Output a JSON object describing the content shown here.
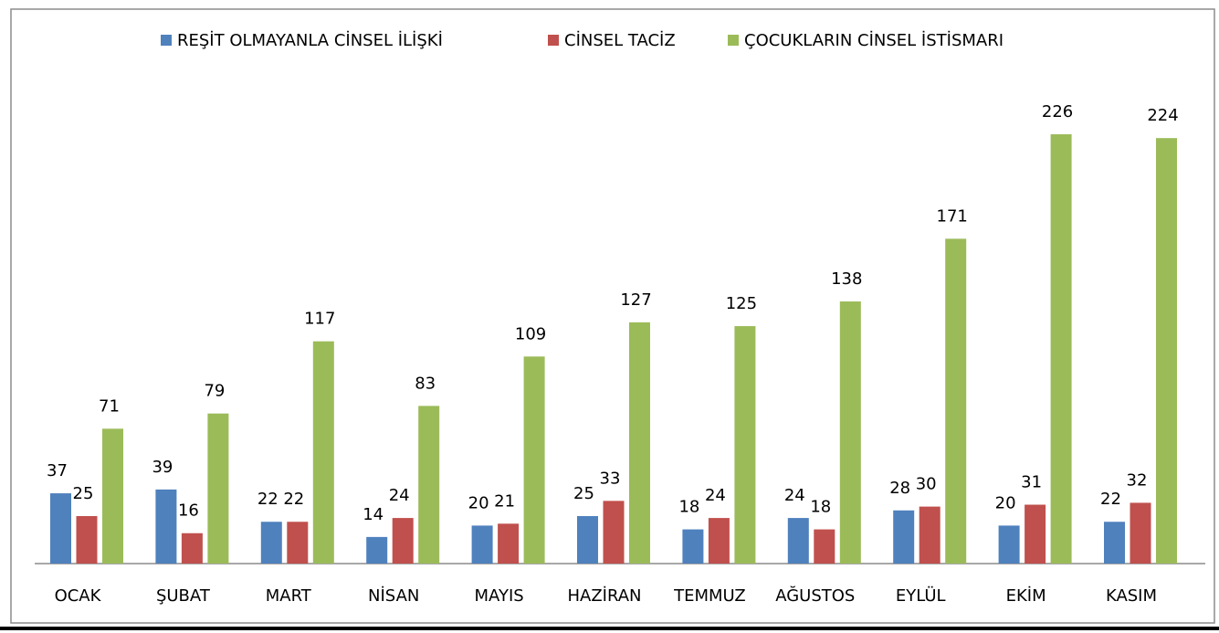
{
  "chart_data": {
    "type": "bar",
    "categories": [
      "OCAK",
      "ŞUBAT",
      "MART",
      "NİSAN",
      "MAYIS",
      "HAZİRAN",
      "TEMMUZ",
      "AĞUSTOS",
      "EYLÜL",
      "EKİM",
      "KASIM"
    ],
    "series": [
      {
        "name": "REŞİT OLMAYANLA CİNSEL İLİŞKİ",
        "color": "#4f81bd",
        "values": [
          37,
          39,
          22,
          14,
          20,
          25,
          18,
          24,
          28,
          20,
          22
        ]
      },
      {
        "name": "CİNSEL TACİZ",
        "color": "#c0504d",
        "values": [
          25,
          16,
          22,
          24,
          21,
          33,
          24,
          18,
          30,
          31,
          32
        ]
      },
      {
        "name": "ÇOCUKLARIN CİNSEL İSTİSMARI",
        "color": "#9bbb59",
        "values": [
          71,
          79,
          117,
          83,
          109,
          127,
          125,
          138,
          171,
          226,
          224
        ]
      }
    ],
    "legend": "top"
  }
}
